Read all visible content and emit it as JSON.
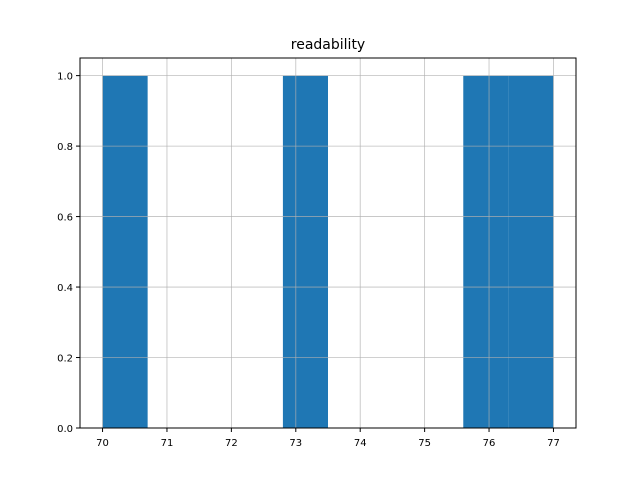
{
  "chart_data": {
    "type": "bar",
    "subtype": "histogram",
    "title": "readability",
    "xlabel": "",
    "ylabel": "",
    "bin_edges": [
      70.0,
      70.7,
      71.4,
      72.1,
      72.8,
      73.5,
      74.2,
      74.9,
      75.6,
      76.3,
      77.0
    ],
    "counts": [
      1,
      0,
      0,
      0,
      1,
      0,
      0,
      0,
      1,
      1
    ],
    "xlim": [
      69.65,
      77.35
    ],
    "ylim": [
      0,
      1.05
    ],
    "xticks": [
      "70",
      "71",
      "72",
      "73",
      "74",
      "75",
      "76",
      "77"
    ],
    "yticks": [
      "0.0",
      "0.2",
      "0.4",
      "0.6",
      "0.8",
      "1.0"
    ],
    "grid": true,
    "bar_color": "#1f77b4",
    "grid_color": "#b0b0b0"
  }
}
